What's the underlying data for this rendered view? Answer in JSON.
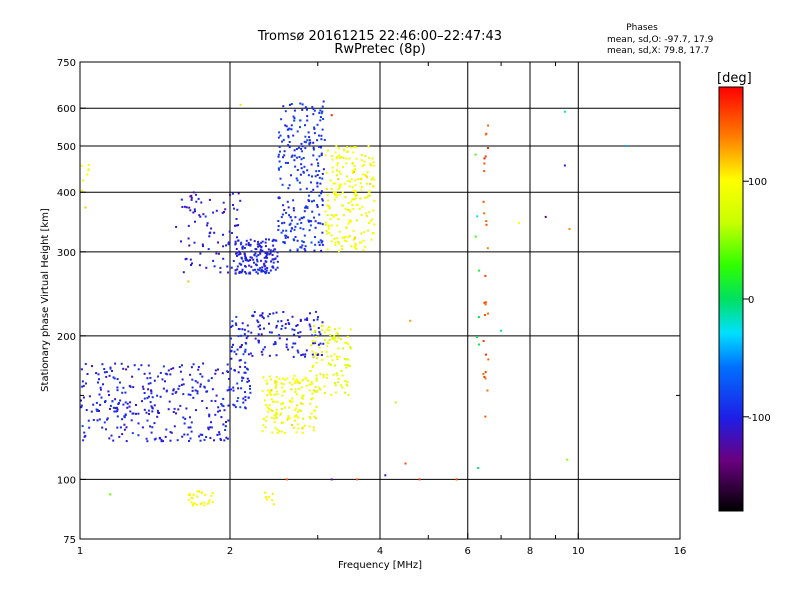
{
  "chart_data": {
    "type": "scatter",
    "title": "Tromsø 20161215 22:46:00–22:47:43",
    "subtitle": "RwPretec (8p)",
    "xlabel": "Frequency [MHz]",
    "ylabel": "Stationary phase Virtual Height [km]",
    "x_scale": "log",
    "y_scale": "log",
    "xlim": [
      1,
      16
    ],
    "ylim": [
      75,
      750
    ],
    "x_ticks": [
      1,
      2,
      4,
      6,
      8,
      10,
      16
    ],
    "x_tick_labels": [
      "1",
      "2",
      "4",
      "6",
      "8",
      "10",
      "16"
    ],
    "x_minor_ticks": [
      3,
      5,
      7,
      9
    ],
    "y_ticks": [
      75,
      100,
      200,
      300,
      400,
      500,
      600,
      750
    ],
    "y_tick_labels": [
      "75",
      "100",
      "200",
      "300",
      "400",
      "500",
      "600",
      "750"
    ],
    "y_minor_ticks": [
      150
    ],
    "grid": true,
    "legend": {
      "title": "Phases",
      "line1": "mean, sd,O:  -97.7, 17.9",
      "line2": "mean, sd,X:  79.8, 17.7"
    },
    "colorbar": {
      "label": "[deg]",
      "range": [
        -180,
        180
      ],
      "ticks": [
        100,
        0,
        -100
      ],
      "tick_labels": [
        "100",
        "0",
        "-100"
      ]
    },
    "clusters": [
      {
        "f": [
          1.0,
          2.0
        ],
        "h": [
          120,
          175
        ],
        "hstep": 0.004,
        "phase": -100,
        "jitter": 18,
        "count": 320
      },
      {
        "f": [
          1.55,
          2.1
        ],
        "h": [
          270,
          400
        ],
        "hstep": 0.02,
        "phase": -105,
        "jitter": 20,
        "count": 90
      },
      {
        "f": [
          2.05,
          2.5
        ],
        "h": [
          270,
          320
        ],
        "hstep": 0.025,
        "phase": -100,
        "jitter": 15,
        "count": 160
      },
      {
        "f": [
          2.5,
          3.1
        ],
        "h": [
          300,
          620
        ],
        "hstep": 0.18,
        "phase": -90,
        "jitter": 15,
        "count": 260
      },
      {
        "f": [
          3.1,
          3.9
        ],
        "h": [
          300,
          500
        ],
        "hstep": 0.06,
        "phase": 95,
        "jitter": 18,
        "count": 220
      },
      {
        "f": [
          2.0,
          2.2
        ],
        "h": [
          140,
          220
        ],
        "hstep": 0.05,
        "phase": -95,
        "jitter": 18,
        "count": 80
      },
      {
        "f": [
          2.2,
          3.1
        ],
        "h": [
          180,
          225
        ],
        "hstep": 0.03,
        "phase": -100,
        "jitter": 15,
        "count": 110
      },
      {
        "f": [
          2.3,
          3.0
        ],
        "h": [
          125,
          165
        ],
        "hstep": 0.03,
        "phase": 95,
        "jitter": 18,
        "count": 160
      },
      {
        "f": [
          2.9,
          3.5
        ],
        "h": [
          150,
          210
        ],
        "hstep": 0.05,
        "phase": 85,
        "jitter": 18,
        "count": 110
      },
      {
        "f": [
          1.65,
          1.85
        ],
        "h": [
          88,
          95
        ],
        "hstep": 0.01,
        "phase": 100,
        "jitter": 10,
        "count": 30
      },
      {
        "f": [
          2.35,
          2.45
        ],
        "h": [
          88,
          95
        ],
        "hstep": 0.01,
        "phase": 100,
        "jitter": 10,
        "count": 8
      },
      {
        "f": [
          1.0,
          1.05
        ],
        "h": [
          360,
          480
        ],
        "hstep": 0.06,
        "phase": 100,
        "jitter": 20,
        "count": 8
      },
      {
        "f": [
          6.45,
          6.6
        ],
        "h": [
          110,
          570
        ],
        "hstep": 0.4,
        "phase": 150,
        "jitter": 20,
        "count": 28
      },
      {
        "f": [
          6.2,
          6.35
        ],
        "h": [
          82,
          500
        ],
        "hstep": 0.3,
        "phase": 20,
        "jitter": 40,
        "count": 8
      }
    ],
    "scattered_points": [
      {
        "f": 3.2,
        "h": 100,
        "phase": -130
      },
      {
        "f": 3.6,
        "h": 100,
        "phase": 150
      },
      {
        "f": 4.1,
        "h": 102,
        "phase": -120
      },
      {
        "f": 4.5,
        "h": 108,
        "phase": 155
      },
      {
        "f": 4.8,
        "h": 100,
        "phase": 160
      },
      {
        "f": 5.7,
        "h": 100,
        "phase": 160
      },
      {
        "f": 4.6,
        "h": 215,
        "phase": 130
      },
      {
        "f": 4.3,
        "h": 145,
        "phase": 60
      },
      {
        "f": 7.6,
        "h": 345,
        "phase": 100
      },
      {
        "f": 8.6,
        "h": 355,
        "phase": -140
      },
      {
        "f": 9.4,
        "h": 455,
        "phase": -100
      },
      {
        "f": 9.6,
        "h": 335,
        "phase": 135
      },
      {
        "f": 9.5,
        "h": 110,
        "phase": 50
      },
      {
        "f": 9.4,
        "h": 590,
        "phase": -20
      },
      {
        "f": 12.5,
        "h": 500,
        "phase": -40
      },
      {
        "f": 7.0,
        "h": 205,
        "phase": -10
      },
      {
        "f": 1.0,
        "h": 240,
        "phase": -130
      },
      {
        "f": 1.15,
        "h": 93,
        "phase": 40
      },
      {
        "f": 1.65,
        "h": 260,
        "phase": 120
      },
      {
        "f": 3.2,
        "h": 580,
        "phase": 170
      },
      {
        "f": 2.1,
        "h": 610,
        "phase": 110
      },
      {
        "f": 2.6,
        "h": 100,
        "phase": 150
      }
    ]
  }
}
